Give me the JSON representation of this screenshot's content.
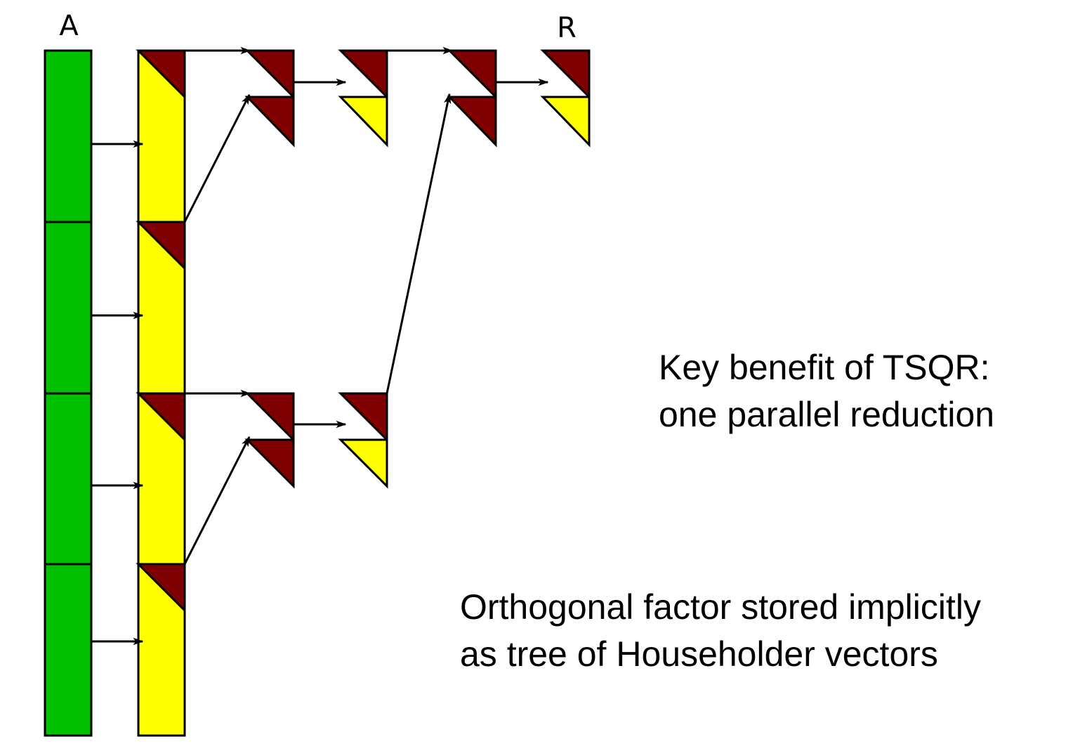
{
  "labels": {
    "matrix_a": "A",
    "matrix_r": "R"
  },
  "notes": {
    "key_benefit": {
      "line1": "Key benefit of TSQR:",
      "line2": "one parallel reduction"
    },
    "orthogonal_factor": {
      "line1": "Orthogonal factor stored implicitly",
      "line2": "as tree of Householder vectors"
    }
  },
  "colors": {
    "input_block": "#00c000",
    "householder": "#ffff00",
    "r_factor": "#7f0000",
    "stroke": "#000000"
  }
}
